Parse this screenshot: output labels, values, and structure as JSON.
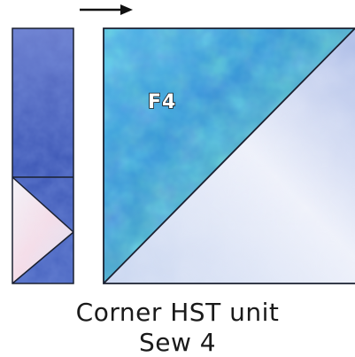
{
  "unit_label": "F4",
  "caption": {
    "line1": "Corner HST unit",
    "line2": "Sew 4"
  },
  "colors": {
    "dark_blue_fabric": "#3f5fb4",
    "aqua_blue_fabric": "#3d9fd8",
    "light_white_fabric": "#e6ecf8",
    "pink_white_fabric": "#f2e6ee",
    "outline": "#1a2030",
    "arrow": "#111111"
  },
  "icons": {
    "direction_arrow": "arrow-right-icon"
  }
}
